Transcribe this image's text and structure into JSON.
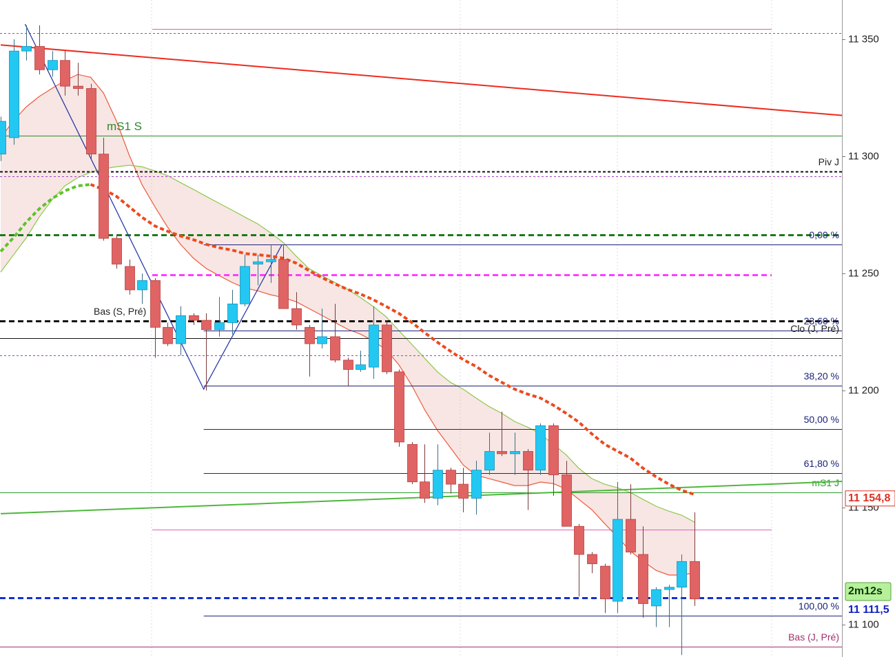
{
  "chart_data": {
    "type": "candlestick",
    "categories": [
      null,
      null,
      null,
      null,
      null,
      null,
      null,
      null,
      null,
      null,
      null,
      null,
      null,
      null,
      null,
      null,
      null,
      null,
      null,
      null,
      null,
      null,
      null,
      null,
      null,
      null,
      null,
      null,
      null,
      null,
      null,
      null,
      null,
      null,
      null,
      null,
      null,
      null,
      null,
      null,
      null,
      null,
      null,
      null,
      null,
      null,
      null,
      null,
      null,
      null,
      null,
      null,
      null,
      null,
      null
    ],
    "open": [
      11301,
      11308,
      11345,
      11347,
      11337,
      11341,
      11330,
      11329,
      11301,
      11265,
      11253,
      11243,
      11247,
      11227,
      11220,
      11232,
      11230,
      11226,
      11229,
      11237,
      11254,
      11255,
      11256,
      11235,
      11227,
      11220,
      11223,
      11213,
      11209,
      11210,
      11228,
      11208,
      11177,
      11161,
      11154,
      11166,
      11160,
      11154,
      11166,
      11174,
      11173,
      11174,
      11166,
      11185,
      11164,
      11142,
      11130,
      11125,
      11110,
      11145,
      11130,
      11108,
      11115,
      11116,
      11127
    ],
    "high": [
      11317,
      11350,
      11356,
      11356,
      11345,
      11345,
      11340,
      11331,
      11308,
      11266,
      11256,
      11250,
      11248,
      11229,
      11236,
      11233,
      11233,
      11240,
      11243,
      11258,
      11258,
      11262,
      11262,
      11242,
      11228,
      11235,
      11237,
      11214,
      11217,
      11236,
      11230,
      11209,
      11178,
      11177,
      11177,
      11167,
      11167,
      11170,
      11182,
      11191,
      11182,
      11175,
      11186,
      11186,
      11170,
      11143,
      11131,
      11126,
      11161,
      11160,
      11142,
      11116,
      11117,
      11130,
      11148
    ],
    "low": [
      11298,
      11305,
      11341,
      11335,
      11334,
      11326,
      11326,
      11299,
      11264,
      11252,
      11241,
      11237,
      11214,
      11219,
      11215,
      11228,
      11200,
      11223,
      11224,
      11236,
      11245,
      11246,
      11235,
      11226,
      11206,
      11218,
      11212,
      11202,
      11208,
      11205,
      11207,
      11176,
      11160,
      11152,
      11151,
      11156,
      11148,
      11147,
      11164,
      11172,
      11164,
      11149,
      11164,
      11155,
      11142,
      11112,
      11122,
      11105,
      11105,
      11130,
      11103,
      11099,
      11099,
      11087,
      11108
    ],
    "close": [
      11315,
      11345,
      11347,
      11337,
      11341,
      11330,
      11329,
      11301,
      11265,
      11254,
      11243,
      11247,
      11227,
      11220,
      11232,
      11230,
      11226,
      11229,
      11237,
      11253,
      11255,
      11256,
      11235,
      11228,
      11220,
      11223,
      11213,
      11209,
      11211,
      11228,
      11208,
      11178,
      11161,
      11154,
      11166,
      11160,
      11154,
      11166,
      11174,
      11173,
      11174,
      11166,
      11185,
      11164,
      11142,
      11130,
      11126,
      11111,
      11145,
      11131,
      11109,
      11115,
      11116,
      11127,
      11111
    ],
    "up_color": "#22c8f2",
    "down_color": "#e06464",
    "ylim": [
      11086.2,
      11366.8
    ],
    "yticks": [
      {
        "value": 11350,
        "label": "11 350"
      },
      {
        "value": 11300,
        "label": "11 300"
      },
      {
        "value": 11250,
        "label": "11 250"
      },
      {
        "value": 11200,
        "label": "11 200"
      },
      {
        "value": 11150,
        "label": "11 150"
      },
      {
        "value": 11100,
        "label": "11 100"
      }
    ],
    "bands": [
      {
        "color": "#ee5a3c",
        "values": [
          11307.9,
          11315.3,
          11321.2,
          11325.6,
          11329.1,
          11332.4,
          11335,
          11333.8,
          11327.1,
          11315.3,
          11300.6,
          11287.9,
          11278.5,
          11269.7,
          11262.4,
          11256.5,
          11252.1,
          11249.1,
          11246.2,
          11243.8,
          11242.6,
          11240.9,
          11239.7,
          11237.9,
          11235,
          11232.1,
          11229.1,
          11226.2,
          11224.1,
          11221.2,
          11217.4,
          11210.9,
          11202.1,
          11191.8,
          11182.9,
          11175.6,
          11168.2,
          11163.8,
          11162.4,
          11160.9,
          11159.4,
          11159.4,
          11160.9,
          11160.3,
          11157.9,
          11153.5,
          11149.1,
          11143.2,
          11137.4,
          11131.5,
          11127.1,
          11123.2,
          11121.2,
          11121.2,
          11122.1
        ]
      },
      {
        "color": "#8cc84b",
        "values": [
          11250.6,
          11257.9,
          11265.3,
          11274.1,
          11281.5,
          11287.4,
          11290.9,
          11293.2,
          11294.7,
          11295.6,
          11296.2,
          11295.6,
          11293.8,
          11291.8,
          11288.8,
          11285.9,
          11282.9,
          11280,
          11277.1,
          11274.1,
          11271.2,
          11267.4,
          11263.2,
          11257.4,
          11252.1,
          11249.1,
          11246.2,
          11243.2,
          11239.7,
          11235.9,
          11231.5,
          11225.6,
          11219.7,
          11213.8,
          11207.9,
          11203.5,
          11200.6,
          11196.8,
          11193.2,
          11190.3,
          11186.8,
          11184.4,
          11181.5,
          11177.1,
          11172.6,
          11166.8,
          11162.4,
          11160,
          11158.5,
          11156.5,
          11153.5,
          11150.6,
          11148.5,
          11146.8,
          11143.8
        ]
      }
    ],
    "lines": [
      {
        "color": "#5ec22c",
        "values": [
          11259.4,
          11265.3,
          11272,
          11277.6,
          11282,
          11285.3,
          11287.4,
          11288,
          null,
          null,
          null,
          null,
          null,
          null,
          null,
          null,
          null,
          null,
          null,
          null,
          null,
          null,
          null,
          null,
          null,
          null,
          null,
          null,
          null,
          null,
          null,
          null,
          null,
          null,
          null,
          null,
          null,
          null,
          null,
          null,
          null,
          null,
          null,
          null,
          null,
          null,
          null,
          null,
          null,
          null,
          null,
          null,
          null,
          null,
          null
        ]
      },
      {
        "color": "#ec4a1e",
        "values": [
          null,
          null,
          null,
          null,
          null,
          null,
          null,
          11288,
          11285.9,
          11283,
          11278.5,
          11274,
          11270.3,
          11268,
          11266,
          11264.4,
          11262.4,
          11261,
          11260,
          11258.5,
          11258,
          11257.4,
          11256.5,
          11254.4,
          11251.2,
          11248.2,
          11245.6,
          11243.2,
          11241.2,
          11238.8,
          11235.9,
          11232.9,
          11229.1,
          11224.7,
          11220.6,
          11216.8,
          11213.2,
          11210.3,
          11206.5,
          11203.5,
          11200.6,
          11198.5,
          11196.8,
          11193.8,
          11190.3,
          11186.5,
          11181.5,
          11177.1,
          11174.1,
          11171.2,
          11166.8,
          11163.2,
          11160,
          11157.4,
          11155.6
        ]
      }
    ],
    "trendlines": [
      {
        "color": "#ee2a1e",
        "x": [
          0,
          69.65
        ],
        "y": [
          11347.6,
          11315.6
        ]
      },
      {
        "color": "#4cb83a",
        "x": [
          0,
          69.65
        ],
        "y": [
          11147.4,
          11162.1
        ]
      },
      {
        "color": "#2a3aa8",
        "x": [
          1.9,
          15.8,
          21.9
        ],
        "y": [
          11356.5,
          11200.6,
          11262.4
        ]
      }
    ],
    "levels": [
      {
        "value": 11354.4,
        "color": "#e060a0",
        "style": "solid",
        "from": 11.8,
        "to": 60
      },
      {
        "value": 11352.6,
        "color": "#a040c0",
        "style": "dotted"
      },
      {
        "value": 11309,
        "color": "#2a8a2a",
        "style": "solid",
        "label": "mS1 S",
        "label_side": "left"
      },
      {
        "value": 11293.5,
        "color": "#111111",
        "style": "dashed",
        "label": "Piv J"
      },
      {
        "value": 11291.5,
        "color": "#a040c0",
        "style": "dotted"
      },
      {
        "value": 11266.5,
        "color": "#1a7a1a",
        "style": "bold-dashed"
      },
      {
        "value": 11262.4,
        "color": "#1c2278",
        "style": "solid",
        "from": 15.8,
        "label": "0,00 %"
      },
      {
        "value": 11249.5,
        "color": "#ff3cff",
        "style": "bold-dashed",
        "from": 11.8,
        "to": 60
      },
      {
        "value": 11229.6,
        "color": "#111111",
        "style": "bold-dashed",
        "label": "Bas (S, Pré)",
        "label_side": "left"
      },
      {
        "value": 11225.6,
        "color": "#1c2278",
        "style": "solid",
        "from": 15.8,
        "label": "23,60 %"
      },
      {
        "value": 11222.4,
        "color": "#111111",
        "style": "solid",
        "label": "Clo (J, Pré)"
      },
      {
        "value": 11215,
        "color": "#a040c0",
        "style": "dotted"
      },
      {
        "value": 11202.1,
        "color": "#1c2278",
        "style": "solid",
        "from": 15.8,
        "label": "38,20 %"
      },
      {
        "value": 11183.6,
        "color": "#1c2278",
        "style": "solid",
        "from": 15.8,
        "label": "50,00 %"
      },
      {
        "value": 11164.7,
        "color": "#1c2278",
        "style": "solid",
        "from": 15.8,
        "label": "61,80 %"
      },
      {
        "value": 11156.4,
        "color": "#2a9a2a",
        "style": "solid",
        "label": "mS1 J"
      },
      {
        "value": 11140.6,
        "color": "#e060c0",
        "style": "solid",
        "from": 11.8,
        "to": 60
      },
      {
        "value": 11111.5,
        "color": "#1030d0",
        "style": "bold-dashed"
      },
      {
        "value": 11103.8,
        "color": "#1c2278",
        "style": "solid",
        "from": 15.8,
        "label": "100,00 %"
      },
      {
        "value": 11090.6,
        "color": "#a0306a",
        "style": "solid",
        "label": "Bas (J, Pré)"
      }
    ],
    "price_tags": [
      {
        "value": 11154.8,
        "label": "11 154,8",
        "color": "#e03020"
      },
      {
        "value": 11111.5,
        "label": "11 111,5",
        "color": "#1020c0"
      }
    ],
    "timer": "2m12s"
  }
}
